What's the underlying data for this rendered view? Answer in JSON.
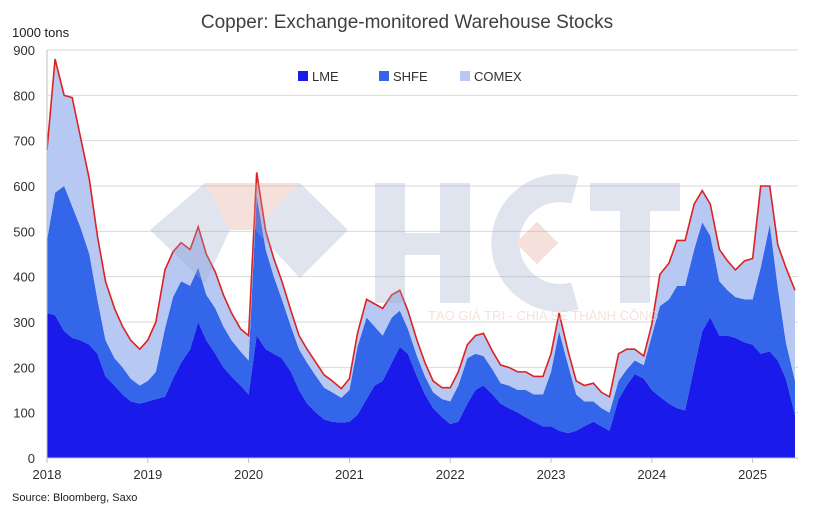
{
  "chart_data": {
    "type": "area",
    "title": "Copper: Exchange-monitored Warehouse Stocks",
    "ylabel": "1000 tons",
    "ylim": [
      0,
      900
    ],
    "y_ticks": [
      0,
      100,
      200,
      300,
      400,
      500,
      600,
      700,
      800,
      900
    ],
    "xlim": [
      2018.0,
      2025.45
    ],
    "x_ticks": [
      2018,
      2019,
      2020,
      2021,
      2022,
      2023,
      2024,
      2025
    ],
    "grid": true,
    "legend_position": "top-center",
    "stacked": true,
    "x": [
      2018.0,
      2018.08,
      2018.17,
      2018.25,
      2018.33,
      2018.42,
      2018.5,
      2018.58,
      2018.67,
      2018.75,
      2018.83,
      2018.92,
      2019.0,
      2019.08,
      2019.17,
      2019.25,
      2019.33,
      2019.42,
      2019.5,
      2019.58,
      2019.67,
      2019.75,
      2019.83,
      2019.92,
      2020.0,
      2020.08,
      2020.17,
      2020.25,
      2020.33,
      2020.42,
      2020.5,
      2020.58,
      2020.67,
      2020.75,
      2020.83,
      2020.92,
      2021.0,
      2021.08,
      2021.17,
      2021.25,
      2021.33,
      2021.42,
      2021.5,
      2021.58,
      2021.67,
      2021.75,
      2021.83,
      2021.92,
      2022.0,
      2022.08,
      2022.17,
      2022.25,
      2022.33,
      2022.42,
      2022.5,
      2022.58,
      2022.67,
      2022.75,
      2022.83,
      2022.92,
      2023.0,
      2023.08,
      2023.17,
      2023.25,
      2023.33,
      2023.42,
      2023.5,
      2023.58,
      2023.67,
      2023.75,
      2023.83,
      2023.92,
      2024.0,
      2024.08,
      2024.17,
      2024.25,
      2024.33,
      2024.42,
      2024.5,
      2024.58,
      2024.67,
      2024.75,
      2024.83,
      2024.92,
      2025.0,
      2025.08,
      2025.17,
      2025.25,
      2025.33,
      2025.42
    ],
    "series": [
      {
        "name": "LME",
        "color": "#1a1aeb",
        "values": [
          320,
          315,
          280,
          265,
          260,
          250,
          230,
          180,
          160,
          140,
          125,
          120,
          125,
          130,
          135,
          175,
          210,
          240,
          300,
          260,
          230,
          200,
          180,
          160,
          140,
          270,
          240,
          230,
          220,
          190,
          150,
          120,
          100,
          85,
          80,
          78,
          80,
          95,
          130,
          160,
          170,
          210,
          245,
          230,
          180,
          140,
          110,
          90,
          75,
          80,
          120,
          150,
          160,
          140,
          120,
          110,
          100,
          90,
          80,
          70,
          70,
          60,
          55,
          60,
          70,
          80,
          70,
          60,
          130,
          160,
          185,
          175,
          150,
          135,
          120,
          110,
          105,
          200,
          280,
          310,
          270,
          270,
          265,
          255,
          250,
          230,
          235,
          215,
          175,
          95
        ]
      },
      {
        "name": "SHFE",
        "color": "#3366e8",
        "values": [
          160,
          270,
          320,
          290,
          250,
          200,
          120,
          80,
          60,
          60,
          50,
          40,
          45,
          60,
          150,
          180,
          180,
          140,
          120,
          100,
          100,
          90,
          80,
          75,
          75,
          310,
          220,
          170,
          130,
          100,
          90,
          90,
          80,
          70,
          65,
          55,
          70,
          150,
          180,
          130,
          100,
          100,
          80,
          55,
          45,
          40,
          35,
          40,
          50,
          80,
          100,
          80,
          65,
          55,
          45,
          50,
          50,
          60,
          60,
          70,
          120,
          220,
          150,
          80,
          55,
          45,
          40,
          40,
          40,
          35,
          30,
          30,
          120,
          200,
          230,
          270,
          275,
          260,
          240,
          180,
          120,
          100,
          90,
          95,
          100,
          190,
          280,
          160,
          80,
          75
        ]
      },
      {
        "name": "COMEX",
        "color": "#b7c8f2",
        "values": [
          200,
          295,
          200,
          240,
          200,
          165,
          140,
          130,
          110,
          90,
          85,
          80,
          90,
          110,
          130,
          100,
          85,
          80,
          90,
          90,
          80,
          70,
          60,
          50,
          55,
          50,
          40,
          40,
          40,
          35,
          30,
          30,
          30,
          28,
          25,
          20,
          25,
          30,
          40,
          50,
          60,
          50,
          45,
          40,
          35,
          30,
          25,
          25,
          30,
          30,
          30,
          40,
          50,
          40,
          40,
          40,
          40,
          40,
          40,
          40,
          40,
          40,
          30,
          30,
          35,
          40,
          35,
          35,
          60,
          45,
          25,
          20,
          25,
          70,
          80,
          100,
          100,
          100,
          70,
          70,
          70,
          65,
          60,
          85,
          90,
          180,
          85,
          95,
          165,
          200
        ]
      }
    ],
    "total_line_color": "#dd2222"
  },
  "legend": [
    {
      "label": "LME",
      "color": "#1a1aeb"
    },
    {
      "label": "SHFE",
      "color": "#3366e8"
    },
    {
      "label": "COMEX",
      "color": "#b7c8f2"
    }
  ],
  "source": "Source: Bloomberg, Saxo",
  "watermark": {
    "logo_text": "HCT",
    "tagline": "TẠO GIÁ TRỊ - CHIA SẺ THÀNH CÔNG"
  }
}
